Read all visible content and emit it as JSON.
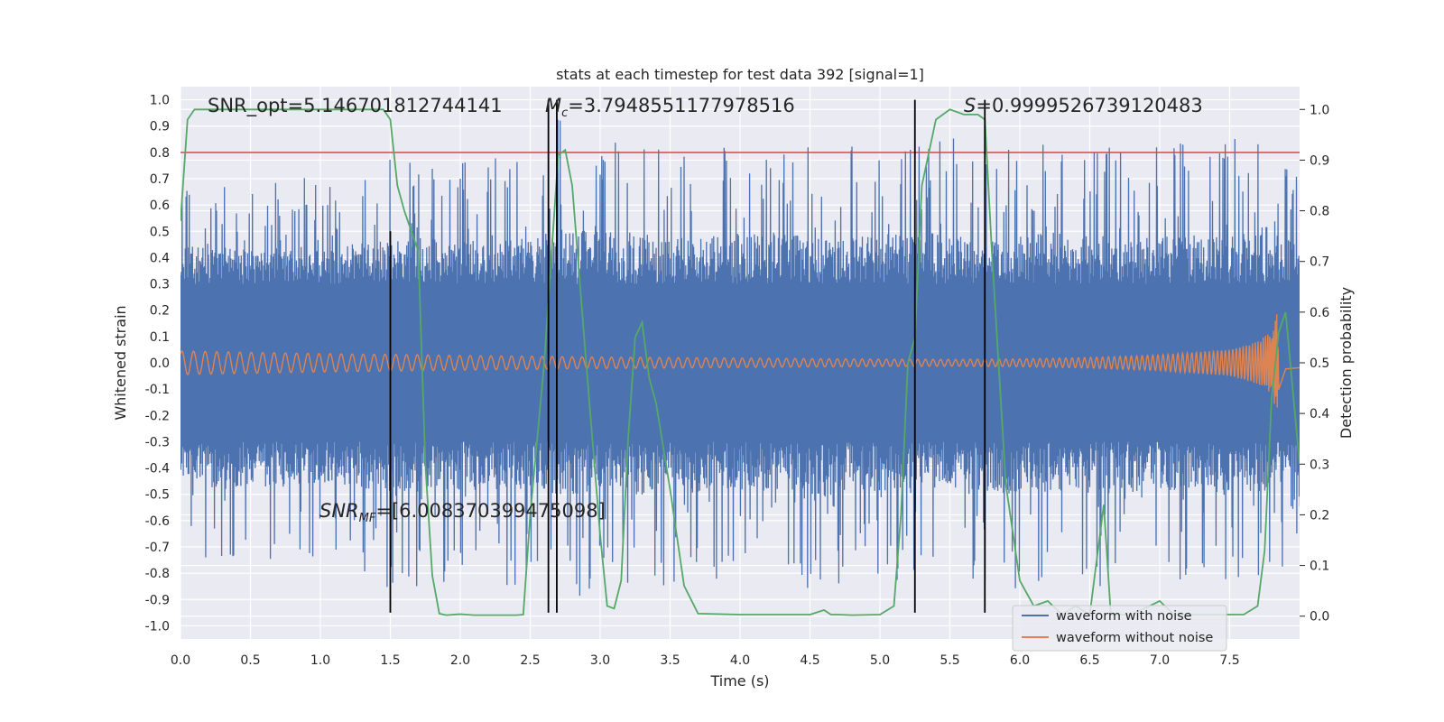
{
  "chart_data": {
    "type": "line",
    "title": "stats at each timestep for test data 392 [signal=1]",
    "xlabel": "Time (s)",
    "ylabel": "Whitened strain",
    "ylabel_right": "Detection probability",
    "xlim": [
      0,
      8
    ],
    "ylim": [
      -1.05,
      1.05
    ],
    "ylim_right": [
      -0.045,
      1.045
    ],
    "x_ticks": [
      0.0,
      0.5,
      1.0,
      1.5,
      2.0,
      2.5,
      3.0,
      3.5,
      4.0,
      4.5,
      5.0,
      5.5,
      6.0,
      6.5,
      7.0,
      7.5
    ],
    "x_tick_labels": [
      "0.0",
      "0.5",
      "1.0",
      "1.5",
      "2.0",
      "2.5",
      "3.0",
      "3.5",
      "4.0",
      "4.5",
      "5.0",
      "5.5",
      "6.0",
      "6.5",
      "7.0",
      "7.5"
    ],
    "y_ticks": [
      1.0,
      0.9,
      0.8,
      0.7,
      0.6,
      0.5,
      0.4,
      0.3,
      0.2,
      0.1,
      0.0,
      -0.1,
      -0.2,
      -0.3,
      -0.4,
      -0.5,
      -0.6,
      -0.7,
      -0.8,
      -0.9,
      -1.0
    ],
    "y_tick_labels": [
      "1.0",
      "0.9",
      "0.8",
      "0.7",
      "0.6",
      "0.5",
      "0.4",
      "0.3",
      "0.2",
      "0.1",
      "0.0",
      "-0.1",
      "-0.2",
      "-0.3",
      "-0.4",
      "-0.5",
      "-0.6",
      "-0.7",
      "-0.8",
      "-0.9",
      "-1.0"
    ],
    "y_right_ticks": [
      1.0,
      0.9,
      0.8,
      0.7,
      0.6,
      0.5,
      0.4,
      0.3,
      0.2,
      0.1,
      0.0
    ],
    "y_right_tick_labels": [
      "1.0",
      "0.9",
      "0.8",
      "0.7",
      "0.6",
      "0.5",
      "0.4",
      "0.3",
      "0.2",
      "0.1",
      "0.0"
    ],
    "grid": true,
    "legend_position": "lower-right",
    "series": [
      {
        "name": "waveform with noise",
        "color": "#4c72b0",
        "axis": "left",
        "envelope_x": [
          0.0,
          0.25,
          0.5,
          0.75,
          1.0,
          1.25,
          1.5,
          1.75,
          2.0,
          2.25,
          2.5,
          2.75,
          3.0,
          3.25,
          3.5,
          3.75,
          4.0,
          4.25,
          4.5,
          4.75,
          5.0,
          5.25,
          5.5,
          5.75,
          6.0,
          6.25,
          6.5,
          6.75,
          7.0,
          7.25,
          7.5,
          7.75,
          8.0
        ],
        "envelope_upper": [
          0.72,
          0.7,
          0.68,
          0.72,
          0.7,
          0.74,
          0.78,
          0.8,
          0.76,
          0.78,
          0.8,
          0.98,
          0.88,
          0.86,
          0.8,
          0.82,
          0.86,
          0.84,
          0.82,
          0.84,
          0.86,
          0.84,
          0.86,
          0.8,
          0.82,
          0.86,
          0.86,
          0.8,
          0.84,
          0.84,
          0.86,
          1.0,
          0.68
        ],
        "envelope_lower": [
          -0.6,
          -0.84,
          -0.76,
          -0.8,
          -0.74,
          -0.78,
          -0.9,
          -0.86,
          -0.82,
          -0.84,
          -0.86,
          -0.92,
          -0.84,
          -0.88,
          -0.84,
          -0.86,
          -0.82,
          -0.84,
          -0.96,
          -0.84,
          -0.86,
          -0.8,
          -0.8,
          -0.84,
          -0.88,
          -0.84,
          -0.86,
          -0.86,
          -0.82,
          -0.84,
          -0.86,
          -0.88,
          -0.7
        ],
        "core_amplitude": 0.3
      },
      {
        "name": "waveform without noise",
        "color": "#dd8452",
        "axis": "left",
        "envelope_x": [
          0.0,
          0.5,
          1.0,
          1.5,
          2.0,
          2.5,
          3.0,
          3.5,
          4.0,
          4.5,
          5.0,
          5.5,
          6.0,
          6.5,
          7.0,
          7.5,
          7.7,
          7.8,
          7.85,
          7.9,
          8.0
        ],
        "envelope": [
          0.045,
          0.04,
          0.035,
          0.032,
          0.028,
          0.025,
          0.022,
          0.02,
          0.018,
          0.016,
          0.014,
          0.013,
          0.015,
          0.02,
          0.03,
          0.05,
          0.08,
          0.12,
          0.22,
          0.05,
          0.04
        ]
      },
      {
        "name": "",
        "color": "#55a868",
        "axis": "right",
        "x": [
          0.0,
          0.05,
          0.1,
          0.2,
          0.5,
          1.0,
          1.45,
          1.5,
          1.55,
          1.6,
          1.7,
          1.75,
          1.8,
          1.85,
          1.9,
          2.0,
          2.1,
          2.2,
          2.3,
          2.4,
          2.45,
          2.5,
          2.6,
          2.7,
          2.75,
          2.8,
          2.9,
          3.0,
          3.05,
          3.1,
          3.15,
          3.2,
          3.25,
          3.3,
          3.35,
          3.4,
          3.5,
          3.6,
          3.7,
          4.0,
          4.3,
          4.5,
          4.6,
          4.65,
          4.7,
          4.8,
          5.0,
          5.1,
          5.15,
          5.2,
          5.25,
          5.3,
          5.4,
          5.5,
          5.6,
          5.7,
          5.75,
          5.8,
          5.9,
          6.0,
          6.1,
          6.2,
          6.3,
          6.4,
          6.5,
          6.6,
          6.65,
          6.7,
          6.8,
          7.0,
          7.1,
          7.2,
          7.4,
          7.6,
          7.7,
          7.75,
          7.8,
          7.85,
          7.9,
          8.0
        ],
        "y": [
          0.78,
          0.98,
          1.0,
          1.0,
          1.0,
          1.0,
          1.0,
          0.98,
          0.85,
          0.8,
          0.72,
          0.3,
          0.08,
          0.005,
          0.002,
          0.004,
          0.002,
          0.002,
          0.002,
          0.002,
          0.003,
          0.2,
          0.5,
          0.91,
          0.92,
          0.85,
          0.5,
          0.16,
          0.02,
          0.015,
          0.07,
          0.35,
          0.55,
          0.58,
          0.47,
          0.42,
          0.25,
          0.06,
          0.005,
          0.003,
          0.003,
          0.003,
          0.012,
          0.003,
          0.003,
          0.002,
          0.003,
          0.02,
          0.2,
          0.5,
          0.55,
          0.85,
          0.98,
          1.0,
          0.99,
          0.99,
          0.98,
          0.72,
          0.26,
          0.07,
          0.02,
          0.03,
          0.003,
          0.02,
          0.003,
          0.22,
          0.003,
          0.003,
          0.003,
          0.03,
          0.003,
          0.003,
          0.003,
          0.003,
          0.02,
          0.13,
          0.43,
          0.56,
          0.6,
          0.3
        ]
      }
    ],
    "reference_lines": [
      {
        "kind": "horizontal",
        "axis": "left",
        "y": 0.8,
        "color": "#c44e52"
      }
    ],
    "vertical_markers": [
      {
        "x": 1.5,
        "ymin": -0.95,
        "ymax": 0.5,
        "color": "#000000"
      },
      {
        "x": 2.63,
        "ymin": -0.95,
        "ymax": 1.0,
        "color": "#000000"
      },
      {
        "x": 2.69,
        "ymin": -0.95,
        "ymax": 1.0,
        "color": "#000000"
      },
      {
        "x": 5.25,
        "ymin": -0.95,
        "ymax": 1.0,
        "color": "#000000"
      },
      {
        "x": 5.75,
        "ymin": -0.95,
        "ymax": 1.0,
        "color": "#000000"
      }
    ],
    "annotations": {
      "snr_opt": "SNR_opt=5.146701812744141",
      "mc": "=3.7948551177978516",
      "mc_symbol": "M",
      "mc_subscript": "c",
      "s_value": "=0.9999526739120483",
      "s_symbol": "S",
      "snr_mf_symbol": "SNR",
      "snr_mf_subscript": "MF",
      "snr_mf_value": "=[6.008370399475098]"
    }
  }
}
